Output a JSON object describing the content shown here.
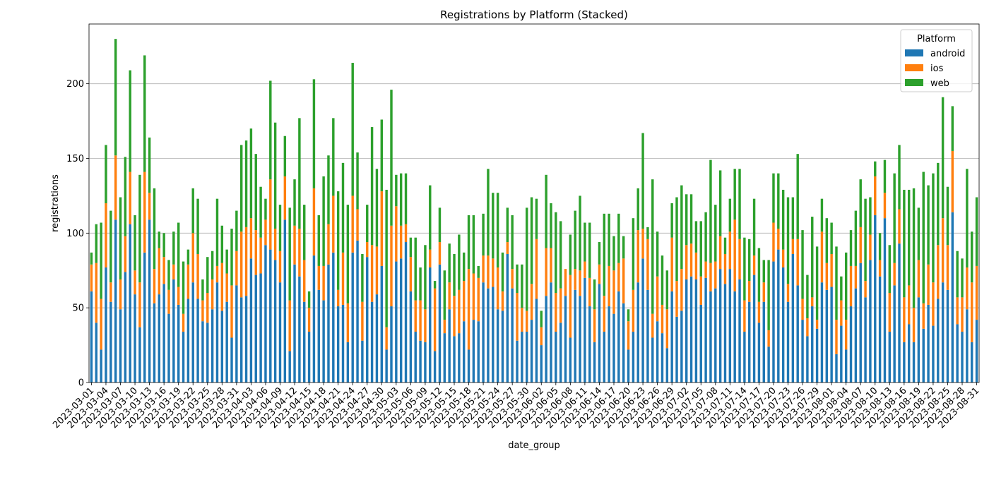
{
  "chart_data": {
    "type": "bar",
    "stacked": true,
    "title": "Registrations by Platform (Stacked)",
    "xlabel": "date_group",
    "ylabel": "registrations",
    "ylim": [
      0,
      240
    ],
    "yticks": [
      0,
      50,
      100,
      150,
      200
    ],
    "grid": "y",
    "legend": {
      "title": "Platform",
      "placement": "top-right"
    },
    "start_date": "2023-03-01",
    "end_date": "2023-08-31",
    "xtick_every": 3,
    "colors": {
      "android": "#1f77b4",
      "ios": "#ff7f0e",
      "web": "#2ca02c"
    },
    "series": [
      {
        "name": "android",
        "color": "#1f77b4",
        "values": [
          61,
          40,
          22,
          77,
          54,
          109,
          49,
          74,
          106,
          59,
          37,
          87,
          109,
          53,
          59,
          66,
          46,
          69,
          52,
          34,
          56,
          67,
          56,
          41,
          40,
          49,
          67,
          48,
          54,
          30,
          65,
          57,
          58,
          83,
          72,
          73,
          92,
          89,
          82,
          67,
          109,
          21,
          79,
          71,
          54,
          34,
          85,
          62,
          55,
          79,
          87,
          51,
          52,
          27,
          87,
          95,
          28,
          84,
          54,
          59,
          78,
          22,
          51,
          81,
          83,
          94,
          61,
          34,
          28,
          27,
          77,
          21,
          79,
          33,
          49,
          31,
          33,
          41,
          22,
          42,
          41,
          67,
          63,
          64,
          49,
          48,
          86,
          63,
          28,
          34,
          34,
          42,
          56,
          25,
          58,
          67,
          34,
          40,
          58,
          30,
          62,
          58,
          70,
          51,
          27,
          66,
          34,
          51,
          46,
          61,
          53,
          22,
          34,
          67,
          83,
          62,
          30,
          41,
          33,
          23,
          61,
          44,
          48,
          69,
          71,
          69,
          52,
          70,
          61,
          63,
          76,
          66,
          76,
          61,
          69,
          34,
          54,
          72,
          40,
          54,
          24,
          81,
          89,
          77,
          54,
          86,
          65,
          42,
          31,
          51,
          36,
          67,
          62,
          64,
          19,
          38,
          22,
          51,
          63,
          80,
          57,
          82,
          112,
          71,
          110,
          34,
          65,
          93,
          27,
          39,
          27,
          57,
          36,
          52,
          38,
          56,
          67,
          62,
          114,
          39,
          34,
          49,
          27,
          42
        ]
      },
      {
        "name": "ios",
        "color": "#ff7f0e",
        "values": [
          18,
          40,
          34,
          43,
          13,
          43,
          20,
          24,
          35,
          16,
          30,
          54,
          18,
          23,
          31,
          18,
          16,
          10,
          12,
          12,
          23,
          33,
          30,
          14,
          20,
          20,
          11,
          32,
          19,
          35,
          23,
          44,
          46,
          27,
          30,
          24,
          17,
          47,
          21,
          21,
          29,
          34,
          26,
          32,
          28,
          16,
          45,
          16,
          23,
          27,
          38,
          11,
          35,
          26,
          38,
          21,
          26,
          10,
          38,
          32,
          50,
          15,
          54,
          37,
          22,
          12,
          23,
          21,
          27,
          22,
          12,
          42,
          15,
          9,
          18,
          27,
          29,
          27,
          54,
          31,
          29,
          18,
          22,
          19,
          28,
          13,
          8,
          13,
          32,
          16,
          14,
          24,
          40,
          12,
          32,
          23,
          26,
          23,
          18,
          42,
          14,
          17,
          11,
          19,
          22,
          13,
          24,
          27,
          29,
          19,
          30,
          19,
          28,
          35,
          20,
          34,
          16,
          30,
          19,
          26,
          36,
          24,
          28,
          23,
          22,
          18,
          19,
          11,
          19,
          18,
          22,
          20,
          25,
          48,
          27,
          21,
          14,
          13,
          14,
          13,
          11,
          26,
          14,
          12,
          12,
          10,
          31,
          14,
          12,
          6,
          6,
          34,
          18,
          22,
          23,
          17,
          20,
          27,
          15,
          24,
          11,
          17,
          26,
          11,
          17,
          26,
          15,
          23,
          30,
          26,
          23,
          25,
          17,
          27,
          29,
          36,
          43,
          30,
          41,
          18,
          23,
          28,
          40,
          36
        ]
      },
      {
        "name": "web",
        "color": "#2ca02c",
        "values": [
          8,
          26,
          51,
          39,
          48,
          78,
          55,
          53,
          68,
          37,
          72,
          78,
          37,
          54,
          11,
          16,
          20,
          22,
          43,
          35,
          10,
          30,
          37,
          14,
          24,
          19,
          45,
          25,
          16,
          38,
          27,
          58,
          58,
          60,
          51,
          34,
          14,
          66,
          71,
          31,
          27,
          62,
          31,
          74,
          37,
          11,
          73,
          34,
          60,
          46,
          52,
          66,
          60,
          66,
          89,
          38,
          32,
          25,
          79,
          52,
          48,
          92,
          91,
          21,
          35,
          34,
          13,
          42,
          22,
          43,
          43,
          5,
          23,
          33,
          26,
          28,
          37,
          19,
          36,
          39,
          8,
          28,
          58,
          44,
          50,
          26,
          23,
          36,
          19,
          29,
          69,
          58,
          27,
          11,
          49,
          30,
          54,
          45,
          0,
          27,
          39,
          50,
          26,
          37,
          20,
          15,
          55,
          35,
          23,
          33,
          15,
          8,
          48,
          28,
          64,
          8,
          90,
          30,
          33,
          26,
          23,
          56,
          56,
          34,
          33,
          21,
          37,
          33,
          69,
          38,
          44,
          11,
          22,
          34,
          47,
          42,
          28,
          38,
          36,
          15,
          47,
          33,
          37,
          40,
          58,
          28,
          57,
          46,
          29,
          54,
          49,
          22,
          30,
          21,
          49,
          16,
          45,
          24,
          37,
          32,
          55,
          25,
          10,
          18,
          22,
          32,
          60,
          43,
          72,
          64,
          80,
          35,
          88,
          53,
          73,
          55,
          81,
          39,
          30,
          31,
          26,
          66,
          34,
          46
        ]
      }
    ]
  }
}
